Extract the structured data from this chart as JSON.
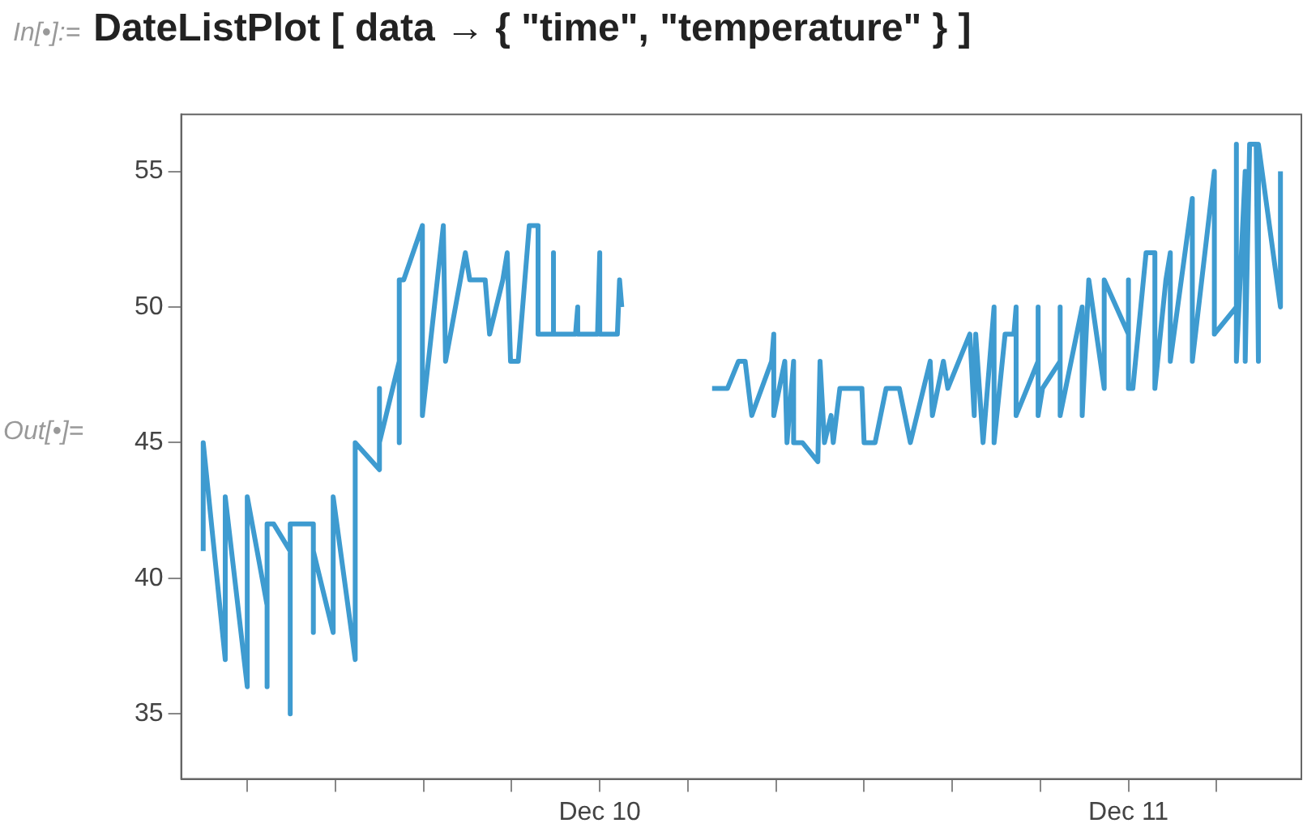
{
  "chart_data": {
    "type": "line",
    "title": "DateListPlot [ data → { \"time\", \"temperature\" } ]",
    "annotations": [
      "In[•]:=",
      "Out[•]="
    ],
    "x": [
      "--12-09T06:00",
      "--12-09T06:00",
      "--12-09T07:00",
      "--12-09T07:00",
      "--12-09T08:00",
      "--12-09T08:00",
      "--12-09T08:54",
      "--12-09T08:54",
      "--12-09T08:54",
      "--12-09T09:12",
      "--12-09T09:57",
      "--12-09T09:57",
      "--12-09T09:57",
      "--12-09T11:00",
      "--12-09T11:00",
      "--12-09T11:00",
      "--12-09T11:54",
      "--12-09T11:54",
      "--12-09T12:54",
      "--12-09T12:54",
      "--12-09T14:00",
      "--12-09T14:00",
      "--12-09T14:00",
      "--12-09T14:54",
      "--12-09T14:54",
      "--12-09T14:54",
      "--12-09T15:06",
      "--12-09T15:57",
      "--12-09T15:57",
      "--12-09T16:54",
      "--12-09T17:00",
      "--12-09T17:54",
      "--12-09T18:06",
      "--12-09T18:48",
      "--12-09T19:00",
      "--12-09T19:36",
      "--12-09T19:48",
      "--12-09T19:57",
      "--12-09T20:18",
      "--12-09T20:48",
      "--12-09T21:12",
      "--12-09T21:12",
      "--12-09T21:54",
      "--12-09T21:54",
      "--12-09T21:54",
      "--12-09T22:54",
      "--12-09T23:00",
      "--12-09T23:00",
      "--12-09T23:54",
      "--12-10T00:00",
      "--12-10T00:00",
      "--12-10T00:48",
      "--12-10T00:54",
      "--12-10T01:00",
      "--12-10T03:00",
      "--12-10T05:06",
      "--12-10T05:48",
      "--12-10T06:18",
      "--12-10T06:36",
      "--12-10T06:54",
      "--12-10T07:48",
      "--12-10T07:54",
      "--12-10T07:54",
      "--12-10T08:24",
      "--12-10T08:30",
      "--12-10T08:48",
      "--12-10T08:48",
      "--12-10T09:12",
      "--12-10T09:54",
      "--12-10T10:00",
      "--12-10T10:12",
      "--12-10T10:30",
      "--12-10T10:36",
      "--12-10T10:54",
      "--12-10T11:54",
      "--12-10T12:00",
      "--12-10T12:30",
      "--12-10T13:00",
      "--12-10T13:36",
      "--12-10T14:06",
      "--12-10T15:00",
      "--12-10T15:06",
      "--12-10T15:36",
      "--12-10T15:48",
      "--12-10T16:48",
      "--12-10T17:00",
      "--12-10T17:04",
      "--12-10T17:24",
      "--12-10T17:54",
      "--12-10T17:54",
      "--12-10T18:24",
      "--12-10T18:48",
      "--12-10T18:54",
      "--12-10T18:54",
      "--12-10T19:54",
      "--12-10T19:54",
      "--12-10T19:54",
      "--12-10T20:06",
      "--12-10T20:54",
      "--12-10T20:54",
      "--12-10T20:54",
      "--12-10T21:54",
      "--12-10T21:54",
      "--12-10T22:12",
      "--12-10T22:54",
      "--12-10T22:54",
      "--12-11T00:00",
      "--12-11T00:00",
      "--12-11T00:00",
      "--12-11T00:12",
      "--12-11T00:48",
      "--12-11T01:12",
      "--12-11T01:12",
      "--12-11T01:42",
      "--12-11T01:54",
      "--12-11T01:54",
      "--12-11T02:54",
      "--12-11T02:54",
      "--12-11T03:54",
      "--12-11T03:54",
      "--12-11T04:54",
      "--12-11T04:54",
      "--12-11T04:54",
      "--12-11T05:18",
      "--12-11T05:18",
      "--12-11T05:30",
      "--12-11T05:48",
      "--12-11T05:54",
      "--12-11T05:54",
      "--12-11T06:54",
      "--12-11T06:54"
    ],
    "series": [
      {
        "color": "#3e9bd0",
        "values": [
          41,
          45,
          37,
          43,
          36,
          43,
          39,
          36,
          42,
          42,
          41,
          35,
          42,
          42,
          38,
          41,
          38,
          43,
          37,
          45,
          44,
          47,
          45,
          48,
          45,
          51,
          51,
          53,
          46,
          53,
          48,
          52,
          51,
          51,
          49,
          51,
          52,
          48,
          48,
          53,
          53,
          49,
          49,
          52,
          49,
          49,
          50,
          49,
          49,
          52,
          49,
          49,
          51,
          50,
          null,
          47,
          47,
          48,
          48,
          46,
          48,
          49,
          46,
          48,
          45,
          48,
          45,
          45,
          44.3,
          48,
          45,
          46,
          45,
          47,
          47,
          45,
          45,
          47,
          47,
          45,
          48,
          46,
          48,
          47,
          49,
          46,
          49,
          45,
          50,
          45,
          49,
          49,
          50,
          46,
          48,
          50,
          46,
          47,
          48,
          50,
          46,
          50,
          46,
          51,
          47,
          51,
          49,
          51,
          47,
          47,
          52,
          52,
          47,
          51,
          52,
          48,
          54,
          48,
          55,
          49,
          50,
          56,
          48,
          55,
          48,
          56,
          56,
          48,
          56,
          50,
          55
        ]
      }
    ],
    "xlim": [
      "--12-09T05:00",
      "--12-11T07:51"
    ],
    "xticks": [
      {
        "value": "--12-09T08:00",
        "label": null
      },
      {
        "value": "--12-09T12:00",
        "label": null
      },
      {
        "value": "--12-09T16:00",
        "label": null
      },
      {
        "value": "--12-09T20:00",
        "label": null
      },
      {
        "value": "--12-10T00:00",
        "label": "Dec 10"
      },
      {
        "value": "--12-10T04:00",
        "label": null
      },
      {
        "value": "--12-10T08:00",
        "label": null
      },
      {
        "value": "--12-10T12:00",
        "label": null
      },
      {
        "value": "--12-10T16:00",
        "label": null
      },
      {
        "value": "--12-10T20:00",
        "label": null
      },
      {
        "value": "--12-11T00:00",
        "label": "Dec 11"
      },
      {
        "value": "--12-11T04:00",
        "label": null
      }
    ],
    "ylim": [
      32.6,
      57.1
    ],
    "yticks": [
      35,
      40,
      45,
      50,
      55
    ],
    "line_style": "solid",
    "marker": "none",
    "legend": false,
    "grid": false
  }
}
